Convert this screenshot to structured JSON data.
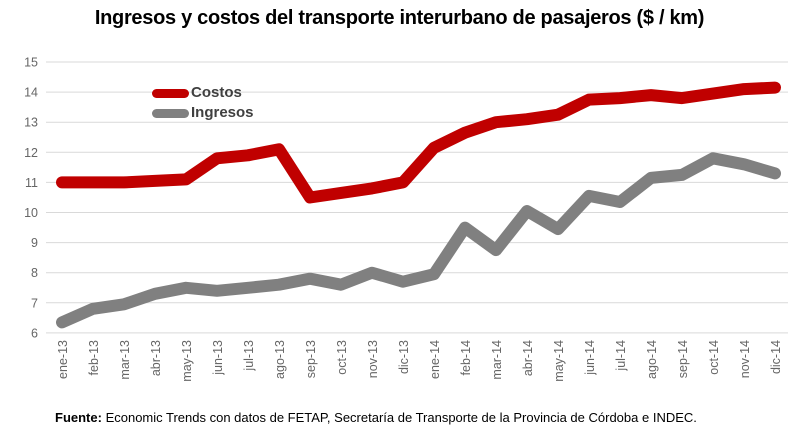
{
  "chart_data": {
    "type": "line",
    "title": "Ingresos y costos del transporte interurbano de pasajeros ($ / km)",
    "categories": [
      "ene-13",
      "feb-13",
      "mar-13",
      "abr-13",
      "may-13",
      "jun-13",
      "jul-13",
      "ago-13",
      "sep-13",
      "oct-13",
      "nov-13",
      "dic-13",
      "ene-14",
      "feb-14",
      "mar-14",
      "abr-14",
      "may-14",
      "jun-14",
      "jul-14",
      "ago-14",
      "sep-14",
      "oct-14",
      "nov-14",
      "dic-14"
    ],
    "series": [
      {
        "name": "Costos",
        "color": "#c00000",
        "values": [
          11.0,
          11.0,
          11.0,
          11.05,
          11.1,
          11.8,
          11.9,
          12.1,
          10.5,
          10.65,
          10.8,
          11.0,
          12.15,
          12.65,
          13.0,
          13.1,
          13.25,
          13.75,
          13.8,
          13.9,
          13.8,
          13.95,
          14.1,
          14.15
        ]
      },
      {
        "name": "Ingresos",
        "color": "#808080",
        "values": [
          6.35,
          6.8,
          6.95,
          7.3,
          7.5,
          7.4,
          7.5,
          7.6,
          7.8,
          7.6,
          8.0,
          7.7,
          7.95,
          9.5,
          8.75,
          10.05,
          9.45,
          10.55,
          10.35,
          11.15,
          11.25,
          11.8,
          11.6,
          11.3
        ]
      }
    ],
    "ylim": [
      6,
      15
    ],
    "ytick_step": 1,
    "y_tick_labels": [
      "6",
      "7",
      "8",
      "9",
      "10",
      "11",
      "12",
      "13",
      "14",
      "15"
    ],
    "grid": true,
    "legend_position": "inside-top-left",
    "colors": {
      "gridline": "#d9d9d9",
      "axis_label": "#666666",
      "legend_text": "#404040",
      "background": "#ffffff"
    }
  },
  "source_note": {
    "label": "Fuente:",
    "text": " Economic Trends con datos de FETAP, Secretaría de Transporte de la Provincia de Córdoba e INDEC."
  }
}
